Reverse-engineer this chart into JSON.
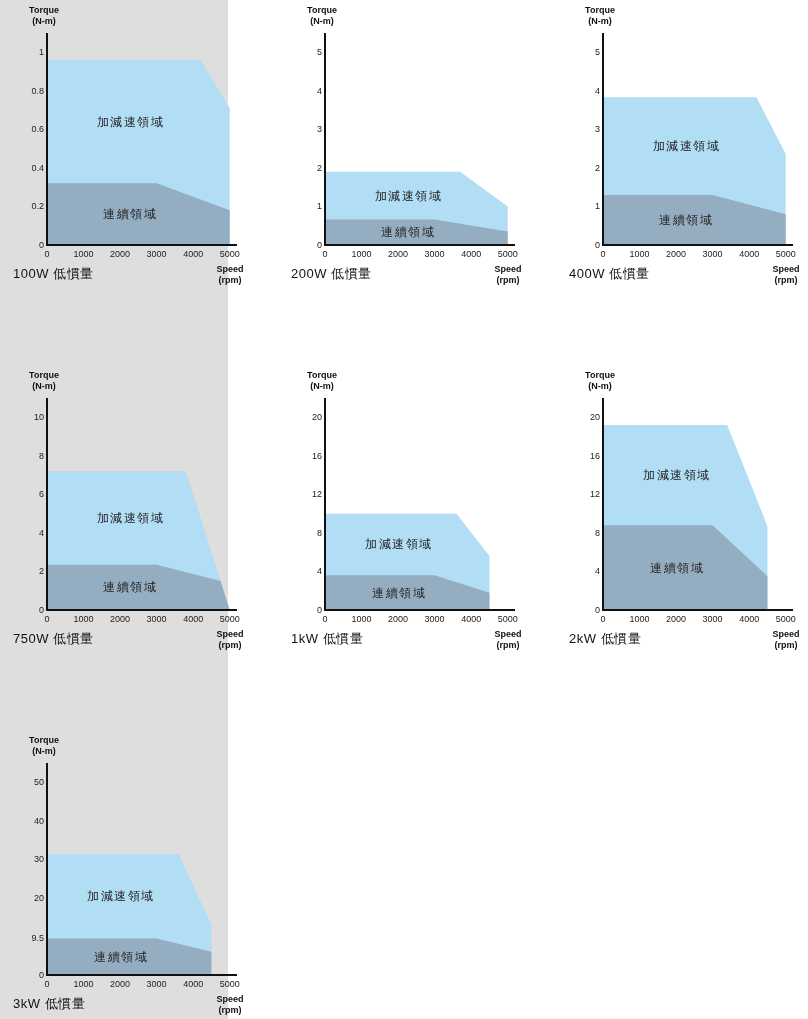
{
  "chart_data": [
    {
      "type": "area",
      "title": "100W 低慣量",
      "xlabel": "Speed (rpm)",
      "ylabel": "Torque (N-m)",
      "xlim": [
        0,
        5200
      ],
      "xticks": [
        0,
        1000,
        2000,
        3000,
        4000,
        5000
      ],
      "ylim": [
        0,
        1.1
      ],
      "yticks": [
        0,
        0.2,
        0.4,
        0.6,
        0.8,
        1
      ],
      "series": [
        {
          "name": "加減速領域",
          "color": "#b1ddf5",
          "x": [
            0,
            4200,
            5000
          ],
          "values": [
            0.96,
            0.96,
            0.71
          ]
        },
        {
          "name": "連續領域",
          "color": "#95adc1",
          "x": [
            0,
            3000,
            5000
          ],
          "values": [
            0.32,
            0.32,
            0.18
          ]
        }
      ]
    },
    {
      "type": "area",
      "title": "200W 低慣量",
      "xlabel": "Speed (rpm)",
      "ylabel": "Torque (N-m)",
      "xlim": [
        0,
        5200
      ],
      "xticks": [
        0,
        1000,
        2000,
        3000,
        4000,
        5000
      ],
      "ylim": [
        0,
        5.5
      ],
      "yticks": [
        0,
        1,
        2,
        3,
        4,
        5
      ],
      "series": [
        {
          "name": "加減速領域",
          "color": "#b1ddf5",
          "x": [
            0,
            3700,
            5000
          ],
          "values": [
            1.9,
            1.9,
            1.0
          ]
        },
        {
          "name": "連續領域",
          "color": "#95adc1",
          "x": [
            0,
            3000,
            5000
          ],
          "values": [
            0.66,
            0.66,
            0.35
          ]
        }
      ]
    },
    {
      "type": "area",
      "title": "400W 低慣量",
      "xlabel": "Speed (rpm)",
      "ylabel": "Torque (N-m)",
      "xlim": [
        0,
        5200
      ],
      "xticks": [
        0,
        1000,
        2000,
        3000,
        4000,
        5000
      ],
      "ylim": [
        0,
        5.5
      ],
      "yticks": [
        0,
        1,
        2,
        3,
        4,
        5
      ],
      "series": [
        {
          "name": "加減速領域",
          "color": "#b1ddf5",
          "x": [
            0,
            4200,
            5000
          ],
          "values": [
            3.83,
            3.83,
            2.36
          ]
        },
        {
          "name": "連續領域",
          "color": "#95adc1",
          "x": [
            0,
            3000,
            5000
          ],
          "values": [
            1.3,
            1.3,
            0.8
          ]
        }
      ]
    },
    {
      "type": "area",
      "title": "750W 低慣量",
      "xlabel": "Speed (rpm)",
      "ylabel": "Torque (N-m)",
      "xlim": [
        0,
        5200
      ],
      "xticks": [
        0,
        1000,
        2000,
        3000,
        4000,
        5000
      ],
      "ylim": [
        0,
        11
      ],
      "yticks": [
        0,
        2,
        4,
        6,
        8,
        10
      ],
      "series": [
        {
          "name": "加減速領域",
          "color": "#b1ddf5",
          "x": [
            0,
            3800,
            5000
          ],
          "values": [
            7.2,
            7.2,
            0
          ]
        },
        {
          "name": "連續領域",
          "color": "#95adc1",
          "x": [
            0,
            3000,
            4750,
            5000
          ],
          "values": [
            2.35,
            2.35,
            1.5,
            0
          ]
        }
      ]
    },
    {
      "type": "area",
      "title": "1kW 低慣量",
      "xlabel": "Speed (rpm)",
      "ylabel": "Torque (N-m)",
      "xlim": [
        0,
        5200
      ],
      "xticks": [
        0,
        1000,
        2000,
        3000,
        4000,
        5000
      ],
      "ylim": [
        0,
        22
      ],
      "yticks": [
        0,
        4,
        8,
        12,
        16,
        20
      ],
      "series": [
        {
          "name": "加減速領域",
          "color": "#b1ddf5",
          "x": [
            0,
            3600,
            4500
          ],
          "values": [
            10,
            10,
            5.6
          ]
        },
        {
          "name": "連續領域",
          "color": "#95adc1",
          "x": [
            0,
            3000,
            4500
          ],
          "values": [
            3.6,
            3.6,
            1.8
          ]
        }
      ]
    },
    {
      "type": "area",
      "title": "2kW 低慣量",
      "xlabel": "Speed (rpm)",
      "ylabel": "Torque (N-m)",
      "xlim": [
        0,
        5200
      ],
      "xticks": [
        0,
        1000,
        2000,
        3000,
        4000,
        5000
      ],
      "ylim": [
        0,
        22
      ],
      "yticks": [
        0,
        4,
        8,
        12,
        16,
        20
      ],
      "series": [
        {
          "name": "加減速領域",
          "color": "#b1ddf5",
          "x": [
            0,
            3400,
            4500
          ],
          "values": [
            19.2,
            19.2,
            8.7
          ]
        },
        {
          "name": "連續領域",
          "color": "#95adc1",
          "x": [
            0,
            3000,
            4500
          ],
          "values": [
            8.8,
            8.8,
            3.5
          ]
        }
      ]
    },
    {
      "type": "area",
      "title": "3kW 低慣量",
      "xlabel": "Speed (rpm)",
      "ylabel": "Torque (N-m)",
      "xlim": [
        0,
        5200
      ],
      "xticks": [
        0,
        1000,
        2000,
        3000,
        4000,
        5000
      ],
      "ylim": [
        0,
        55
      ],
      "yticks": [
        0,
        9.5,
        20,
        30,
        40,
        50
      ],
      "series": [
        {
          "name": "加減速領域",
          "color": "#b1ddf5",
          "x": [
            0,
            3600,
            4500
          ],
          "values": [
            31.4,
            31.4,
            13
          ]
        },
        {
          "name": "連續領域",
          "color": "#95adc1",
          "x": [
            0,
            3000,
            4500
          ],
          "values": [
            9.5,
            9.5,
            6
          ]
        }
      ]
    }
  ]
}
